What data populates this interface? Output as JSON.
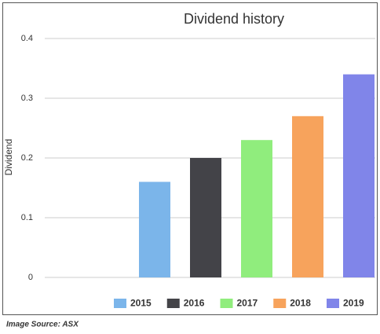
{
  "chart_data": {
    "type": "bar",
    "title": "Dividend history",
    "ylabel": "Dividend",
    "series": [
      {
        "name": "2015",
        "color": "#7bb5ea",
        "values": [
          0.16
        ]
      },
      {
        "name": "2016",
        "color": "#434348",
        "values": [
          0.2
        ]
      },
      {
        "name": "2017",
        "color": "#90ed7d",
        "values": [
          0.23
        ]
      },
      {
        "name": "2018",
        "color": "#f7a35c",
        "values": [
          0.27
        ]
      },
      {
        "name": "2019",
        "color": "#8085e9",
        "values": [
          0.34
        ]
      }
    ],
    "ylim": [
      0,
      0.4
    ],
    "yticks": [
      0,
      0.1,
      0.2,
      0.3,
      0.4
    ],
    "grid": true,
    "legend": "bottom",
    "source": "Image Source: ASX"
  }
}
